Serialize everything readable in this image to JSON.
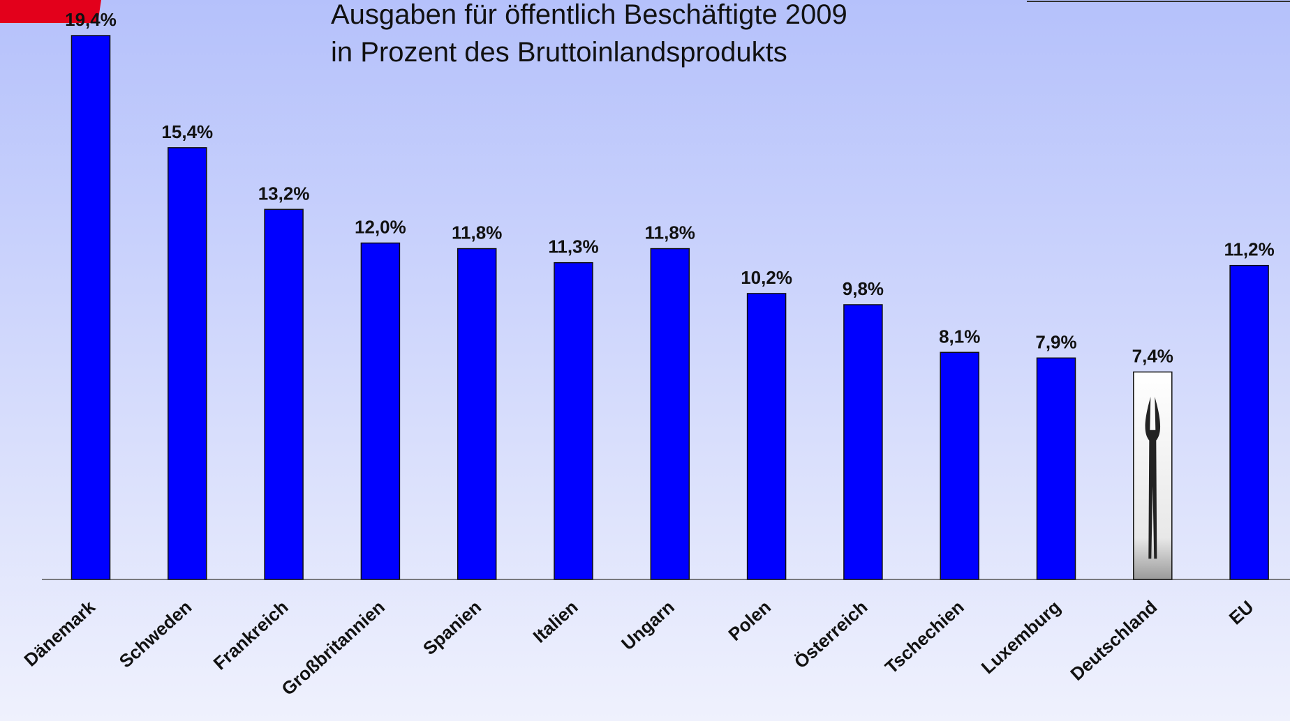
{
  "chart_data": {
    "type": "bar",
    "title_lines": [
      "Ausgaben für öffentlich Beschäftigte 2009",
      "in Prozent des Bruttoinlandsprodukts"
    ],
    "categories": [
      "Dänemark",
      "Schweden",
      "Frankreich",
      "Großbritannien",
      "Spanien",
      "Italien",
      "Ungarn",
      "Polen",
      "Österreich",
      "Tschechien",
      "Luxemburg",
      "Deutschland",
      "EU"
    ],
    "values": [
      19.4,
      15.4,
      13.2,
      12.0,
      11.8,
      11.3,
      11.8,
      10.2,
      9.8,
      8.1,
      7.9,
      7.4,
      11.2
    ],
    "value_labels": [
      "19,4%",
      "15,4%",
      "13,2%",
      "12,0%",
      "11,8%",
      "11,3%",
      "11,8%",
      "10,2%",
      "9,8%",
      "8,1%",
      "7,9%",
      "7,4%",
      "11,2%"
    ],
    "colors": [
      "#0000ff",
      "#0000ff",
      "#0000ff",
      "#0000ff",
      "#0000ff",
      "#0000ff",
      "#0000ff",
      "#0000ff",
      "#0000ff",
      "#0000ff",
      "#0000ff",
      "#ffffff",
      "#0000ff"
    ]
  }
}
